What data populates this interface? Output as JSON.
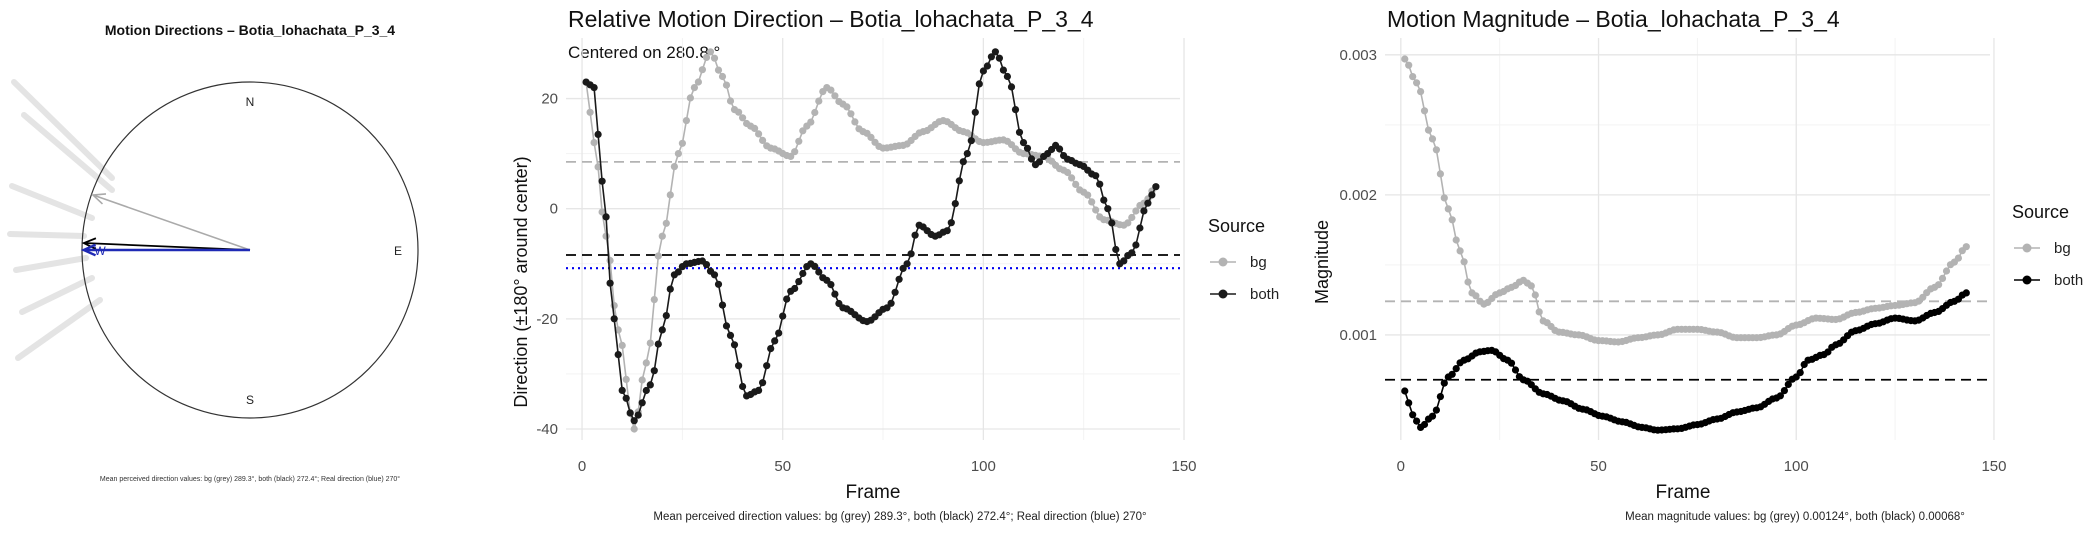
{
  "compass_panel": {
    "title": "Motion Directions – Botia_lohachata_P_3_4",
    "labels": {
      "north": "N",
      "east": "E",
      "south": "S",
      "west": "W"
    },
    "footnote": "Mean perceived direction values: bg (grey) 289.3°, both (black) 272.4°; Real direction (blue) 270°",
    "arrows": [
      {
        "name": "bg",
        "direction_deg": 289.3,
        "color": "#aaaaaa"
      },
      {
        "name": "both",
        "direction_deg": 272.4,
        "color": "#000000"
      },
      {
        "name": "real",
        "direction_deg": 270,
        "color": "#1f2ab5"
      }
    ]
  },
  "colors": {
    "bg": "#b3b3b3",
    "both": "#1a1a1a",
    "real": "#0000ee",
    "grid_major": "#e6e6e6",
    "grid_minor": "#f3f3f3"
  },
  "chart_data": [
    {
      "type": "line",
      "title": "Relative Motion Direction – Botia_lohachata_P_3_4",
      "subtitle": "Centered on  280.8 °",
      "xlabel": "Frame",
      "ylabel": "Direction (±180° around center)",
      "xlim": [
        -4,
        149
      ],
      "ylim": [
        -42,
        31
      ],
      "xticks": [
        0,
        50,
        100,
        150
      ],
      "yticks": [
        -40,
        -20,
        0,
        20
      ],
      "grid": true,
      "legend_title": "Source",
      "legend_position": "right",
      "reference_lines": [
        {
          "series": "bg",
          "value": 8.5,
          "style": "dashed",
          "color": "#b3b3b3"
        },
        {
          "series": "both",
          "value": -8.4,
          "style": "dashed",
          "color": "#000000"
        },
        {
          "series": "real",
          "value": -10.8,
          "style": "dotted",
          "color": "#0000ee"
        }
      ],
      "series": [
        {
          "name": "bg",
          "color": "#b3b3b3",
          "knots": [
            [
              1,
              23
            ],
            [
              3,
              12
            ],
            [
              6,
              -5
            ],
            [
              9,
              -22
            ],
            [
              13,
              -40
            ],
            [
              16,
              -28
            ],
            [
              20,
              -5
            ],
            [
              24,
              10
            ],
            [
              28,
              22
            ],
            [
              32,
              28.5
            ],
            [
              35,
              24
            ],
            [
              38,
              18
            ],
            [
              42,
              15
            ],
            [
              47,
              11
            ],
            [
              52,
              9.5
            ],
            [
              56,
              15
            ],
            [
              61,
              22
            ],
            [
              65,
              19
            ],
            [
              70,
              14
            ],
            [
              75,
              11
            ],
            [
              80,
              11.5
            ],
            [
              85,
              14
            ],
            [
              90,
              16
            ],
            [
              95,
              14
            ],
            [
              100,
              12
            ],
            [
              105,
              12.5
            ],
            [
              110,
              10
            ],
            [
              115,
              9.5
            ],
            [
              120,
              7
            ],
            [
              125,
              3
            ],
            [
              130,
              -2
            ],
            [
              135,
              -3
            ],
            [
              140,
              1
            ],
            [
              143,
              4
            ]
          ]
        },
        {
          "name": "both",
          "color": "#1a1a1a",
          "knots": [
            [
              1,
              23
            ],
            [
              3,
              22
            ],
            [
              5,
              5
            ],
            [
              8,
              -20
            ],
            [
              10,
              -33
            ],
            [
              13,
              -38.5
            ],
            [
              17,
              -32
            ],
            [
              20,
              -22
            ],
            [
              23,
              -12
            ],
            [
              26,
              -10
            ],
            [
              30,
              -9.5
            ],
            [
              33,
              -12
            ],
            [
              37,
              -23
            ],
            [
              41,
              -34
            ],
            [
              44,
              -33
            ],
            [
              48,
              -24
            ],
            [
              52,
              -15
            ],
            [
              57,
              -10
            ],
            [
              61,
              -13
            ],
            [
              65,
              -18
            ],
            [
              71,
              -20.5
            ],
            [
              76,
              -18
            ],
            [
              81,
              -10
            ],
            [
              84,
              -3
            ],
            [
              88,
              -5
            ],
            [
              91,
              -4
            ],
            [
              96,
              10
            ],
            [
              100,
              25
            ],
            [
              103,
              28.5
            ],
            [
              106,
              24
            ],
            [
              110,
              12
            ],
            [
              113,
              8
            ],
            [
              116,
              10
            ],
            [
              118,
              11.5
            ],
            [
              121,
              9
            ],
            [
              124,
              8
            ],
            [
              128,
              6
            ],
            [
              131,
              0
            ],
            [
              134,
              -10
            ],
            [
              137,
              -8
            ],
            [
              141,
              1
            ],
            [
              143,
              4
            ]
          ]
        }
      ],
      "footnote": "Mean perceived direction values: bg (grey) 289.3°, both (black) 272.4°; Real direction (blue) 270°"
    },
    {
      "type": "line",
      "title": "Motion Magnitude – Botia_lohachata_P_3_4",
      "xlabel": "Frame",
      "ylabel": "Magnitude",
      "xlim": [
        -4,
        149
      ],
      "ylim": [
        0.00025,
        0.00312
      ],
      "xticks": [
        0,
        50,
        100,
        150
      ],
      "yticks": [
        0.001,
        0.002,
        0.003
      ],
      "ytick_labels": [
        "0.001",
        "0.002",
        "0.003"
      ],
      "grid": true,
      "legend_title": "Source",
      "legend_position": "right",
      "reference_lines": [
        {
          "series": "bg",
          "value": 0.00124,
          "style": "dashed",
          "color": "#b3b3b3"
        },
        {
          "series": "both",
          "value": 0.00068,
          "style": "dashed",
          "color": "#000000"
        }
      ],
      "series": [
        {
          "name": "bg",
          "color": "#b3b3b3",
          "knots": [
            [
              1,
              0.00297
            ],
            [
              4,
              0.0028
            ],
            [
              8,
              0.0024
            ],
            [
              12,
              0.0019
            ],
            [
              15,
              0.0016
            ],
            [
              18,
              0.0013
            ],
            [
              21,
              0.00122
            ],
            [
              25,
              0.0013
            ],
            [
              28,
              0.00134
            ],
            [
              31,
              0.00139
            ],
            [
              33,
              0.00135
            ],
            [
              36,
              0.0011
            ],
            [
              40,
              0.00102
            ],
            [
              45,
              0.001
            ],
            [
              50,
              0.00096
            ],
            [
              55,
              0.00095
            ],
            [
              60,
              0.00098
            ],
            [
              65,
              0.001
            ],
            [
              70,
              0.00104
            ],
            [
              75,
              0.00104
            ],
            [
              80,
              0.00102
            ],
            [
              85,
              0.00098
            ],
            [
              90,
              0.00098
            ],
            [
              95,
              0.001
            ],
            [
              100,
              0.00107
            ],
            [
              105,
              0.00112
            ],
            [
              110,
              0.00111
            ],
            [
              115,
              0.00116
            ],
            [
              120,
              0.00119
            ],
            [
              125,
              0.00121
            ],
            [
              130,
              0.00123
            ],
            [
              135,
              0.00134
            ],
            [
              140,
              0.00152
            ],
            [
              143,
              0.00163
            ]
          ]
        },
        {
          "name": "both",
          "color": "#000000",
          "knots": [
            [
              1,
              0.0006
            ],
            [
              3,
              0.00043
            ],
            [
              5,
              0.00034
            ],
            [
              8,
              0.00042
            ],
            [
              12,
              0.0007
            ],
            [
              16,
              0.00082
            ],
            [
              20,
              0.00088
            ],
            [
              23,
              0.00089
            ],
            [
              27,
              0.00082
            ],
            [
              31,
              0.00068
            ],
            [
              36,
              0.00058
            ],
            [
              41,
              0.00053
            ],
            [
              46,
              0.00047
            ],
            [
              51,
              0.00042
            ],
            [
              56,
              0.00038
            ],
            [
              61,
              0.00034
            ],
            [
              65,
              0.00032
            ],
            [
              70,
              0.00033
            ],
            [
              75,
              0.00036
            ],
            [
              80,
              0.0004
            ],
            [
              85,
              0.00045
            ],
            [
              90,
              0.00048
            ],
            [
              95,
              0.00055
            ],
            [
              100,
              0.0007
            ],
            [
              103,
              0.00082
            ],
            [
              107,
              0.00086
            ],
            [
              110,
              0.00093
            ],
            [
              115,
              0.00103
            ],
            [
              120,
              0.00108
            ],
            [
              125,
              0.00112
            ],
            [
              130,
              0.0011
            ],
            [
              135,
              0.00116
            ],
            [
              140,
              0.00124
            ],
            [
              143,
              0.0013
            ]
          ]
        }
      ],
      "footnote": "Mean magnitude values: bg (grey) 0.00124°, both (black) 0.00068°"
    }
  ]
}
